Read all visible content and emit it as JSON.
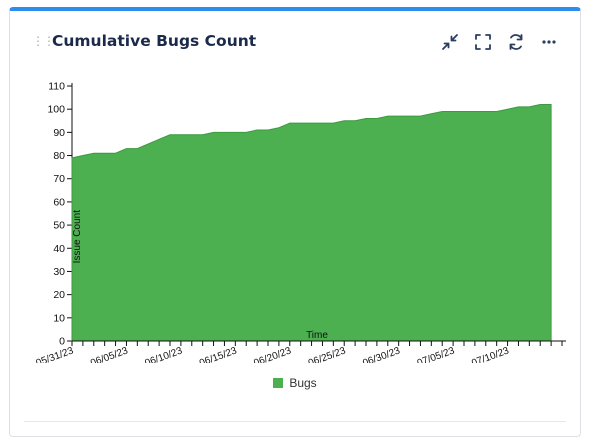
{
  "widget": {
    "title": "Cumulative Bugs Count",
    "toolbar": {
      "collapse_icon": "collapse-icon",
      "fullscreen_icon": "fullscreen-icon",
      "refresh_icon": "refresh-icon",
      "more_icon": "more-icon"
    },
    "accent_color": "#2d8cf0",
    "series_color": "#4caf50"
  },
  "chart_data": {
    "type": "area",
    "xlabel": "Time",
    "ylabel": "Issue Count",
    "ylim": [
      0,
      110
    ],
    "yticks": [
      0,
      10,
      20,
      30,
      40,
      50,
      60,
      70,
      80,
      90,
      100,
      110
    ],
    "xtick_labels": [
      "05/31/23",
      "06/05/23",
      "06/10/23",
      "06/15/23",
      "06/20/23",
      "06/25/23",
      "06/30/23",
      "07/05/23",
      "07/10/23"
    ],
    "legend": "bottom",
    "series": [
      {
        "name": "Bugs",
        "values": [
          79,
          80,
          81,
          81,
          81,
          83,
          83,
          85,
          87,
          89,
          89,
          89,
          89,
          90,
          90,
          90,
          90,
          91,
          91,
          92,
          94,
          94,
          94,
          94,
          94,
          95,
          95,
          96,
          96,
          97,
          97,
          97,
          97,
          98,
          99,
          99,
          99,
          99,
          99,
          99,
          100,
          101,
          101,
          102,
          102
        ]
      }
    ]
  }
}
